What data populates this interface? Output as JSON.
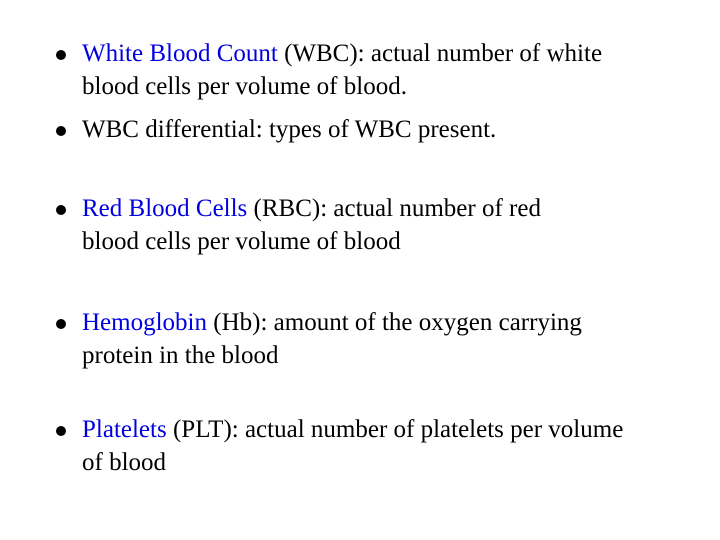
{
  "slide": {
    "accent_color": "#0000e0",
    "bullets": [
      {
        "highlight": "White Blood Count",
        "line1": " (WBC): actual number of white",
        "line2": "blood cells per volume of blood."
      },
      {
        "highlight": "",
        "line1": "WBC differential: types of WBC present.",
        "line2": ""
      },
      {
        "highlight": "Red Blood Cells",
        "line1": " (RBC): actual number of red",
        "line2": "blood cells per volume of blood"
      },
      {
        "highlight": "Hemoglobin",
        "line1": " (Hb): amount of the oxygen carrying",
        "line2": "protein in the blood"
      },
      {
        "highlight": "Platelets",
        "line1": " (PLT): actual number of platelets per volume",
        "line2": "of blood"
      }
    ]
  }
}
